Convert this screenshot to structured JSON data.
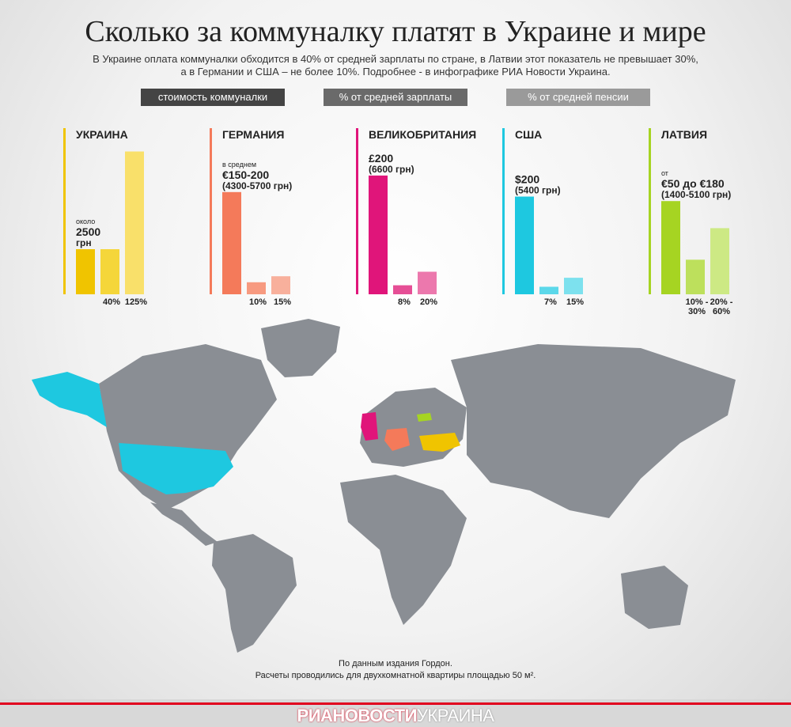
{
  "header": {
    "title": "Сколько за коммуналку платят в Украине и мире",
    "subtitle_line1": "В Украине оплата коммуналки обходится в 40% от средней зарплаты по стране, в Латвии этот показатель не превышает 30%,",
    "subtitle_line2": "а в Германии и США – не более 10%. Подробнее - в инфографике РИА Новости Украина."
  },
  "legend": [
    {
      "label": "стоимость коммуналки",
      "color": "#444444"
    },
    {
      "label": "% от средней зарплаты",
      "color": "#6a6a6a"
    },
    {
      "label": "% от средней пенсии",
      "color": "#9a9a9a"
    }
  ],
  "chart_data": [
    {
      "type": "bar",
      "title": "УКРАИНА",
      "categories": [
        "стоимость коммуналки",
        "% от средней зарплаты",
        "% от средней пенсии"
      ],
      "colors": [
        "#f0c400",
        "#f5d63a",
        "#f9e06a"
      ],
      "accent": "#f0c400",
      "values": [
        30,
        30,
        95
      ],
      "data_labels": [
        "",
        "40%",
        "125%"
      ],
      "cost_note": [
        "около",
        "2500",
        "грн"
      ]
    },
    {
      "type": "bar",
      "title": "ГЕРМАНИЯ",
      "categories": [
        "стоимость коммуналки",
        "% от средней зарплаты",
        "% от средней пенсии"
      ],
      "colors": [
        "#f47a5a",
        "#f79a80",
        "#f8b09c"
      ],
      "accent": "#f47a5a",
      "values": [
        68,
        8,
        12
      ],
      "data_labels": [
        "",
        "10%",
        "15%"
      ],
      "cost_note": [
        "в среднем",
        "€150-200",
        "(4300-5700 грн)"
      ]
    },
    {
      "type": "bar",
      "title": "ВЕЛИКОБРИТАНИЯ",
      "categories": [
        "стоимость коммуналки",
        "% от средней зарплаты",
        "% от средней пенсии"
      ],
      "colors": [
        "#e0157a",
        "#e64f96",
        "#ec78ad"
      ],
      "accent": "#e0157a",
      "values": [
        79,
        6,
        15
      ],
      "data_labels": [
        "",
        "8%",
        "20%"
      ],
      "cost_note": [
        "",
        "£200",
        "(6600 грн)"
      ]
    },
    {
      "type": "bar",
      "title": "США",
      "categories": [
        "стоимость коммуналки",
        "% от средней зарплаты",
        "% от средней пенсии"
      ],
      "colors": [
        "#1ec8e0",
        "#5cd8ea",
        "#7de1ee"
      ],
      "accent": "#1ec8e0",
      "values": [
        65,
        5,
        11
      ],
      "data_labels": [
        "",
        "7%",
        "15%"
      ],
      "cost_note": [
        "",
        "$200",
        "(5400 грн)"
      ]
    },
    {
      "type": "bar",
      "title": "ЛАТВИЯ",
      "categories": [
        "стоимость коммуналки",
        "% от средней зарплаты",
        "% от средней пенсии"
      ],
      "colors": [
        "#a6d422",
        "#bde05c",
        "#cde984"
      ],
      "accent": "#a6d422",
      "values": [
        62,
        23,
        44
      ],
      "data_labels": [
        "",
        "10% - 30%",
        "20% - 60%"
      ],
      "cost_note": [
        "от",
        "€50 до €180",
        "(1400-5100 грн)"
      ]
    }
  ],
  "map": {
    "land_color": "#8a8e94",
    "highlights": [
      {
        "country": "США",
        "color": "#1ec8e0"
      },
      {
        "country": "ВЕЛИКОБРИТАНИЯ",
        "color": "#e0157a"
      },
      {
        "country": "ГЕРМАНИЯ",
        "color": "#f47a5a"
      },
      {
        "country": "УКРАИНА",
        "color": "#f0c400"
      },
      {
        "country": "ЛАТВИЯ",
        "color": "#a6d422"
      }
    ]
  },
  "footer": {
    "source": "По данным издания Гордон.",
    "note": "Расчеты проводились для двухкомнатной квартиры площадью 50 м².",
    "brand_ria": "РИАНОВОСТИ",
    "brand_ua": "УКРАИНА",
    "brand_color": "#e1001e"
  }
}
